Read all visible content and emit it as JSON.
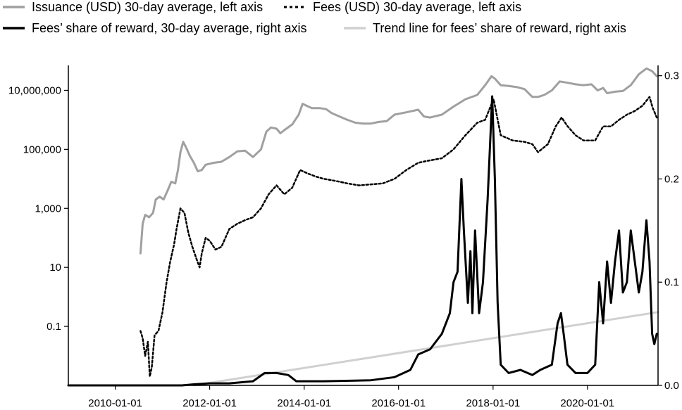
{
  "chart_data": {
    "type": "line",
    "title": "",
    "legend": {
      "placement": "top",
      "entries": [
        {
          "label": "Issuance (USD) 30-day average, left axis",
          "color": "#a0a0a0",
          "dash": "solid"
        },
        {
          "label": "Fees (USD) 30-day average, left axis",
          "color": "#000000",
          "dash": "dotted"
        },
        {
          "label": "Fees’ share of reward, 30-day average, right axis",
          "color": "#000000",
          "dash": "solid"
        },
        {
          "label": "Trend line for fees’ share of reward, right axis",
          "color": "#d0d0d0",
          "dash": "solid"
        }
      ]
    },
    "x_axis": {
      "type": "date",
      "range": [
        "2009-01-03",
        "2021-06-30"
      ],
      "ticks": [
        "2010-01-01",
        "2012-01-01",
        "2014-01-01",
        "2016-01-01",
        "2018-01-01",
        "2020-01-01"
      ]
    },
    "y_left": {
      "scale": "log",
      "range": [
        0.001,
        70000000
      ],
      "ticks": [
        {
          "value": 0.1,
          "label": "0.1"
        },
        {
          "value": 10,
          "label": "10"
        },
        {
          "value": 1000,
          "label": "1,000"
        },
        {
          "value": 100000,
          "label": "100,000"
        },
        {
          "value": 10000000,
          "label": "10,000,000"
        }
      ]
    },
    "y_right": {
      "scale": "linear",
      "range": [
        0,
        0.31
      ],
      "ticks": [
        {
          "value": 0.0,
          "label": "0.0"
        },
        {
          "value": 0.1,
          "label": "0.1"
        },
        {
          "value": 0.2,
          "label": "0.2"
        },
        {
          "value": 0.3,
          "label": "0.3"
        }
      ]
    },
    "grid": false,
    "series": [
      {
        "name": "Issuance (USD) 30-day average, left axis",
        "axis": "left",
        "points": [
          [
            "2010-07-15",
            30
          ],
          [
            "2010-08-01",
            300
          ],
          [
            "2010-08-20",
            600
          ],
          [
            "2010-09-20",
            500
          ],
          [
            "2010-10-20",
            700
          ],
          [
            "2010-11-10",
            2000
          ],
          [
            "2010-12-10",
            2500
          ],
          [
            "2011-01-10",
            2000
          ],
          [
            "2011-02-10",
            4000
          ],
          [
            "2011-03-10",
            8000
          ],
          [
            "2011-04-10",
            7000
          ],
          [
            "2011-05-01",
            20000
          ],
          [
            "2011-05-20",
            80000
          ],
          [
            "2011-06-10",
            180000
          ],
          [
            "2011-07-01",
            120000
          ],
          [
            "2011-08-01",
            60000
          ],
          [
            "2011-09-01",
            35000
          ],
          [
            "2011-10-01",
            18000
          ],
          [
            "2011-11-01",
            20000
          ],
          [
            "2011-12-01",
            30000
          ],
          [
            "2012-02-01",
            35000
          ],
          [
            "2012-04-01",
            38000
          ],
          [
            "2012-06-01",
            55000
          ],
          [
            "2012-08-01",
            85000
          ],
          [
            "2012-10-01",
            90000
          ],
          [
            "2012-12-01",
            55000
          ],
          [
            "2013-02-01",
            100000
          ],
          [
            "2013-03-15",
            400000
          ],
          [
            "2013-04-20",
            550000
          ],
          [
            "2013-06-01",
            500000
          ],
          [
            "2013-07-01",
            350000
          ],
          [
            "2013-08-01",
            450000
          ],
          [
            "2013-10-01",
            700000
          ],
          [
            "2013-11-20",
            1500000
          ],
          [
            "2013-12-20",
            3500000
          ],
          [
            "2014-01-20",
            3000000
          ],
          [
            "2014-03-01",
            2500000
          ],
          [
            "2014-05-01",
            2500000
          ],
          [
            "2014-06-20",
            2300000
          ],
          [
            "2014-08-01",
            1700000
          ],
          [
            "2014-10-01",
            1300000
          ],
          [
            "2014-12-01",
            1000000
          ],
          [
            "2015-02-01",
            800000
          ],
          [
            "2015-04-01",
            750000
          ],
          [
            "2015-06-01",
            750000
          ],
          [
            "2015-08-01",
            850000
          ],
          [
            "2015-10-01",
            900000
          ],
          [
            "2015-12-01",
            1500000
          ],
          [
            "2016-03-01",
            1800000
          ],
          [
            "2016-06-01",
            2200000
          ],
          [
            "2016-07-15",
            1300000
          ],
          [
            "2016-09-01",
            1200000
          ],
          [
            "2016-12-01",
            1500000
          ],
          [
            "2017-03-01",
            2800000
          ],
          [
            "2017-06-01",
            5000000
          ],
          [
            "2017-09-01",
            7000000
          ],
          [
            "2017-11-01",
            15000000
          ],
          [
            "2017-12-20",
            30000000
          ],
          [
            "2018-01-15",
            25000000
          ],
          [
            "2018-03-01",
            15000000
          ],
          [
            "2018-05-01",
            14000000
          ],
          [
            "2018-07-01",
            13000000
          ],
          [
            "2018-09-01",
            11000000
          ],
          [
            "2018-11-01",
            6000000
          ],
          [
            "2018-12-15",
            6000000
          ],
          [
            "2019-02-01",
            7000000
          ],
          [
            "2019-04-01",
            10000000
          ],
          [
            "2019-06-01",
            20000000
          ],
          [
            "2019-08-01",
            18000000
          ],
          [
            "2019-10-01",
            16000000
          ],
          [
            "2019-12-01",
            15000000
          ],
          [
            "2020-02-01",
            16000000
          ],
          [
            "2020-03-20",
            10000000
          ],
          [
            "2020-05-01",
            12000000
          ],
          [
            "2020-06-01",
            8000000
          ],
          [
            "2020-08-01",
            9000000
          ],
          [
            "2020-10-01",
            9500000
          ],
          [
            "2020-12-01",
            15000000
          ],
          [
            "2021-02-01",
            35000000
          ],
          [
            "2021-04-01",
            55000000
          ],
          [
            "2021-05-15",
            45000000
          ],
          [
            "2021-06-20",
            30000000
          ]
        ]
      },
      {
        "name": "Fees (USD) 30-day average, left axis",
        "axis": "left",
        "points": [
          [
            "2010-07-15",
            0.07
          ],
          [
            "2010-08-01",
            0.04
          ],
          [
            "2010-08-20",
            0.01
          ],
          [
            "2010-09-10",
            0.03
          ],
          [
            "2010-09-25",
            0.002
          ],
          [
            "2010-10-10",
            0.004
          ],
          [
            "2010-11-01",
            0.05
          ],
          [
            "2010-12-01",
            0.07
          ],
          [
            "2011-01-01",
            0.3
          ],
          [
            "2011-02-01",
            3
          ],
          [
            "2011-03-01",
            15
          ],
          [
            "2011-04-01",
            60
          ],
          [
            "2011-04-20",
            200
          ],
          [
            "2011-05-20",
            1000
          ],
          [
            "2011-06-20",
            700
          ],
          [
            "2011-07-20",
            150
          ],
          [
            "2011-08-20",
            50
          ],
          [
            "2011-09-20",
            20
          ],
          [
            "2011-10-15",
            10
          ],
          [
            "2011-11-01",
            30
          ],
          [
            "2011-12-01",
            100
          ],
          [
            "2012-01-01",
            80
          ],
          [
            "2012-02-15",
            40
          ],
          [
            "2012-04-01",
            50
          ],
          [
            "2012-06-01",
            200
          ],
          [
            "2012-08-01",
            300
          ],
          [
            "2012-10-01",
            400
          ],
          [
            "2012-12-01",
            500
          ],
          [
            "2013-02-01",
            1000
          ],
          [
            "2013-04-01",
            3000
          ],
          [
            "2013-06-01",
            6000
          ],
          [
            "2013-08-01",
            3000
          ],
          [
            "2013-10-01",
            5000
          ],
          [
            "2013-12-01",
            20000
          ],
          [
            "2014-02-01",
            15000
          ],
          [
            "2014-04-01",
            12000
          ],
          [
            "2014-06-01",
            10000
          ],
          [
            "2014-08-01",
            9000
          ],
          [
            "2014-10-01",
            8000
          ],
          [
            "2014-12-01",
            7000
          ],
          [
            "2015-03-01",
            6000
          ],
          [
            "2015-06-01",
            6500
          ],
          [
            "2015-09-01",
            7000
          ],
          [
            "2015-12-01",
            10000
          ],
          [
            "2016-03-01",
            20000
          ],
          [
            "2016-06-01",
            35000
          ],
          [
            "2016-08-01",
            40000
          ],
          [
            "2016-12-01",
            50000
          ],
          [
            "2017-03-01",
            100000
          ],
          [
            "2017-06-01",
            300000
          ],
          [
            "2017-09-01",
            800000
          ],
          [
            "2017-11-01",
            1000000
          ],
          [
            "2017-12-15",
            3000000
          ],
          [
            "2018-01-05",
            5000000
          ],
          [
            "2018-02-10",
            800000
          ],
          [
            "2018-03-01",
            300000
          ],
          [
            "2018-06-01",
            200000
          ],
          [
            "2018-09-01",
            180000
          ],
          [
            "2018-11-01",
            150000
          ],
          [
            "2018-12-15",
            80000
          ],
          [
            "2019-03-01",
            150000
          ],
          [
            "2019-05-01",
            600000
          ],
          [
            "2019-06-15",
            1200000
          ],
          [
            "2019-08-01",
            600000
          ],
          [
            "2019-10-01",
            300000
          ],
          [
            "2019-12-01",
            200000
          ],
          [
            "2020-03-01",
            200000
          ],
          [
            "2020-05-01",
            600000
          ],
          [
            "2020-07-01",
            600000
          ],
          [
            "2020-09-01",
            1000000
          ],
          [
            "2020-11-01",
            1500000
          ],
          [
            "2021-01-01",
            2000000
          ],
          [
            "2021-03-01",
            3000000
          ],
          [
            "2021-04-25",
            6000000
          ],
          [
            "2021-05-20",
            2500000
          ],
          [
            "2021-06-20",
            1200000
          ]
        ]
      },
      {
        "name": "Fees’ share of reward, 30-day average, right axis",
        "axis": "right",
        "points": [
          [
            "2009-01-03",
            0.0
          ],
          [
            "2011-06-01",
            0.0
          ],
          [
            "2011-09-01",
            0.001
          ],
          [
            "2012-01-01",
            0.002
          ],
          [
            "2012-06-01",
            0.002
          ],
          [
            "2012-12-01",
            0.004
          ],
          [
            "2013-03-01",
            0.012
          ],
          [
            "2013-06-01",
            0.012
          ],
          [
            "2013-09-01",
            0.01
          ],
          [
            "2013-11-01",
            0.004
          ],
          [
            "2014-06-01",
            0.004
          ],
          [
            "2015-06-01",
            0.005
          ],
          [
            "2015-12-01",
            0.008
          ],
          [
            "2016-04-01",
            0.015
          ],
          [
            "2016-06-01",
            0.03
          ],
          [
            "2016-09-01",
            0.035
          ],
          [
            "2016-12-01",
            0.05
          ],
          [
            "2017-02-01",
            0.07
          ],
          [
            "2017-03-01",
            0.1
          ],
          [
            "2017-04-01",
            0.11
          ],
          [
            "2017-05-01",
            0.2
          ],
          [
            "2017-05-20",
            0.15
          ],
          [
            "2017-06-20",
            0.08
          ],
          [
            "2017-07-10",
            0.13
          ],
          [
            "2017-07-25",
            0.07
          ],
          [
            "2017-08-15",
            0.15
          ],
          [
            "2017-09-15",
            0.07
          ],
          [
            "2017-10-15",
            0.1
          ],
          [
            "2017-11-20",
            0.18
          ],
          [
            "2017-12-25",
            0.28
          ],
          [
            "2018-01-15",
            0.2
          ],
          [
            "2018-02-05",
            0.08
          ],
          [
            "2018-03-01",
            0.02
          ],
          [
            "2018-05-01",
            0.012
          ],
          [
            "2018-08-01",
            0.015
          ],
          [
            "2018-11-01",
            0.01
          ],
          [
            "2019-01-01",
            0.015
          ],
          [
            "2019-04-01",
            0.02
          ],
          [
            "2019-05-15",
            0.06
          ],
          [
            "2019-06-10",
            0.07
          ],
          [
            "2019-07-01",
            0.05
          ],
          [
            "2019-07-30",
            0.02
          ],
          [
            "2019-10-01",
            0.012
          ],
          [
            "2020-01-01",
            0.012
          ],
          [
            "2020-03-01",
            0.02
          ],
          [
            "2020-04-01",
            0.1
          ],
          [
            "2020-05-01",
            0.06
          ],
          [
            "2020-06-01",
            0.12
          ],
          [
            "2020-07-01",
            0.08
          ],
          [
            "2020-08-01",
            0.12
          ],
          [
            "2020-09-01",
            0.15
          ],
          [
            "2020-10-01",
            0.09
          ],
          [
            "2020-11-01",
            0.1
          ],
          [
            "2020-12-01",
            0.15
          ],
          [
            "2021-01-01",
            0.12
          ],
          [
            "2021-02-01",
            0.09
          ],
          [
            "2021-03-01",
            0.11
          ],
          [
            "2021-04-01",
            0.16
          ],
          [
            "2021-04-25",
            0.12
          ],
          [
            "2021-05-15",
            0.05
          ],
          [
            "2021-06-01",
            0.04
          ],
          [
            "2021-06-20",
            0.05
          ]
        ]
      },
      {
        "name": "Trend line for fees’ share of reward, right axis",
        "axis": "right",
        "points": [
          [
            "2011-09-01",
            0.0
          ],
          [
            "2021-06-30",
            0.071
          ]
        ]
      }
    ]
  }
}
